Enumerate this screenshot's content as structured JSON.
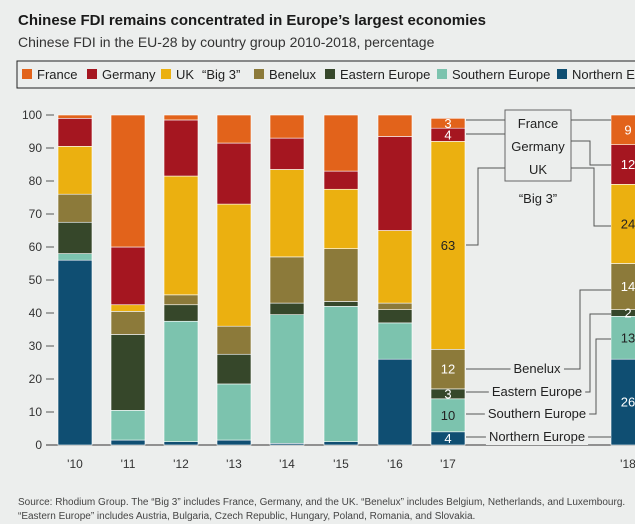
{
  "chart_data": {
    "type": "bar",
    "stacked": true,
    "title": "Chinese FDI remains concentrated in Europe’s largest economies",
    "subtitle": "Chinese FDI in the EU-28 by country group 2010-2018, percentage",
    "categories": [
      "'10",
      "'11",
      "'12",
      "'13",
      "'14",
      "'15",
      "'16",
      "'17",
      "'18"
    ],
    "ylim": [
      0,
      100
    ],
    "yticks": [
      "0",
      "10",
      "20",
      "30",
      "40",
      "50",
      "60",
      "70",
      "80",
      "90",
      "100"
    ],
    "big3_legend": "“Big 3”",
    "series": [
      {
        "name": "Northern Europe",
        "color": "#0f4e72",
        "values": [
          56,
          1.5,
          1,
          1.5,
          0.5,
          1,
          26,
          4,
          26
        ]
      },
      {
        "name": "Southern Europe",
        "color": "#7cc3ae",
        "values": [
          2,
          9,
          36.5,
          17,
          39,
          41,
          11,
          10,
          13
        ]
      },
      {
        "name": "Eastern Europe",
        "color": "#36472a",
        "values": [
          9.5,
          23,
          5,
          9,
          3.5,
          1.5,
          4,
          3,
          2
        ]
      },
      {
        "name": "Benelux",
        "color": "#8c7a3a",
        "values": [
          8.5,
          7,
          3,
          8.5,
          14,
          16,
          2,
          12,
          14
        ]
      },
      {
        "name": "UK",
        "color": "#ebb010",
        "values": [
          14.5,
          2,
          36,
          37,
          26.5,
          18,
          22,
          63,
          24
        ]
      },
      {
        "name": "Germany",
        "color": "#a51620",
        "values": [
          8.5,
          17.5,
          17,
          18.5,
          9.5,
          5.5,
          28.5,
          4,
          12
        ]
      },
      {
        "name": "France",
        "color": "#e2631b",
        "values": [
          1,
          40,
          1.5,
          8.5,
          7,
          17,
          6.5,
          3,
          9
        ]
      }
    ],
    "annotations_2017": {
      "France": "3",
      "Germany": "4",
      "UK": "63",
      "Benelux": "12",
      "Eastern Europe": "3",
      "Southern Europe": "10",
      "Northern Europe": "4"
    },
    "annotations_2018": {
      "France": "9",
      "Germany": "12",
      "UK": "24",
      "Benelux": "14",
      "Eastern Europe": "2",
      "Southern Europe": "13",
      "Northern Europe": "26"
    },
    "callout_labels": {
      "France": "France",
      "Germany": "Germany",
      "UK": "UK",
      "Big3": "“Big 3”",
      "Benelux": "Benelux",
      "Eastern Europe": "Eastern Europe",
      "Southern Europe": "Southern Europe",
      "Northern Europe": "Northern Europe"
    }
  },
  "source": "Source: Rhodium Group. The “Big 3” includes France, Germany, and the UK. “Benelux” includes Belgium, Netherlands, and Luxembourg. “Eastern Europe” includes Austria, Bulgaria, Czech Republic, Hungary, Poland, Romania, and Slovakia."
}
